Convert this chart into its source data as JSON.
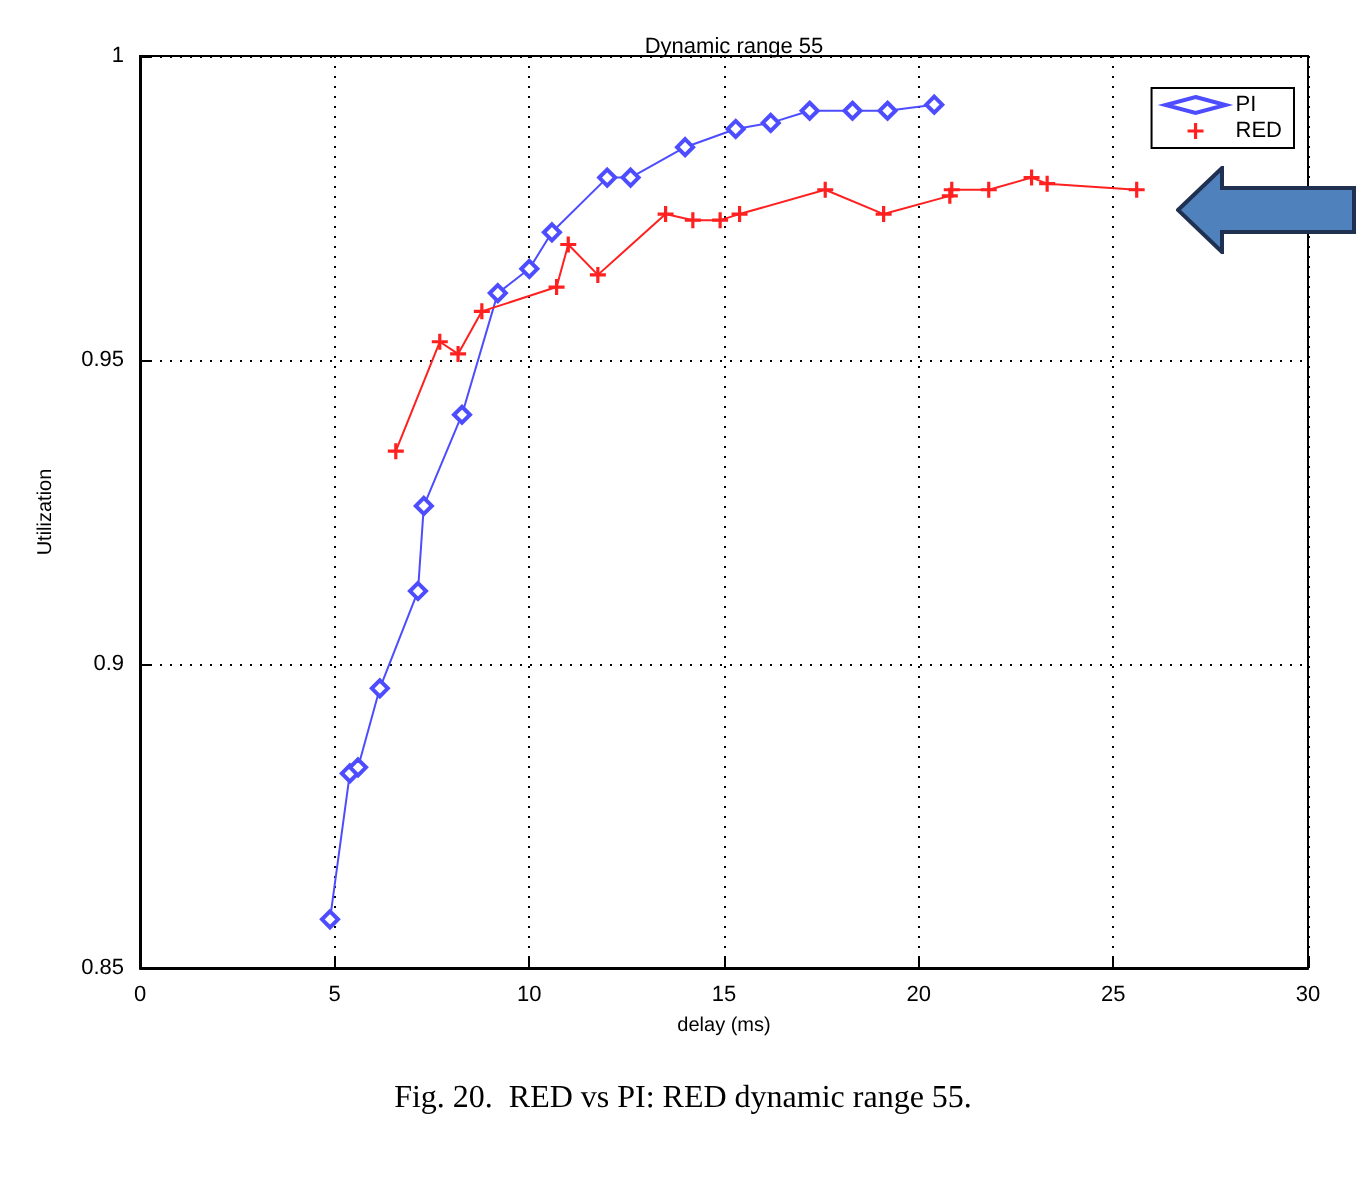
{
  "chart_data": {
    "type": "line",
    "title": "Dynamic range 55",
    "xlabel": "delay (ms)",
    "ylabel": "Utilization",
    "annotations": [
      "Fig. 20.  RED vs PI: RED dynamic range 55."
    ],
    "xlim": [
      0,
      30
    ],
    "xticks": [
      0,
      5,
      10,
      15,
      20,
      25,
      30
    ],
    "ylim": [
      0.85,
      1
    ],
    "yticks": [
      0.85,
      0.9,
      0.95,
      1
    ],
    "grid": true,
    "legend": "top right",
    "line_style": "solid",
    "series": [
      {
        "name": "PI",
        "color": "#4d4dff",
        "marker": "diamond",
        "x": [
          4.88,
          5.39,
          5.6,
          6.16,
          7.14,
          7.29,
          8.27,
          9.19,
          10.0,
          10.58,
          12.0,
          12.6,
          14.0,
          15.3,
          16.2,
          17.2,
          18.3,
          19.2,
          20.4
        ],
        "values": [
          0.858,
          0.882,
          0.883,
          0.896,
          0.912,
          0.926,
          0.941,
          0.961,
          0.965,
          0.971,
          0.98,
          0.98,
          0.985,
          0.988,
          0.989,
          0.991,
          0.991,
          0.991,
          0.992
        ]
      },
      {
        "name": "RED",
        "color": "#ff2020",
        "marker": "cross",
        "x": [
          6.57,
          7.7,
          8.17,
          8.78,
          10.7,
          11.0,
          11.76,
          13.5,
          14.2,
          14.9,
          15.4,
          17.6,
          19.1,
          20.8,
          20.85,
          21.8,
          22.9,
          23.3,
          25.6
        ],
        "values": [
          0.935,
          0.953,
          0.951,
          0.958,
          0.962,
          0.969,
          0.964,
          0.974,
          0.973,
          0.973,
          0.974,
          0.978,
          0.974,
          0.977,
          0.978,
          0.978,
          0.98,
          0.979,
          0.978
        ]
      }
    ]
  }
}
